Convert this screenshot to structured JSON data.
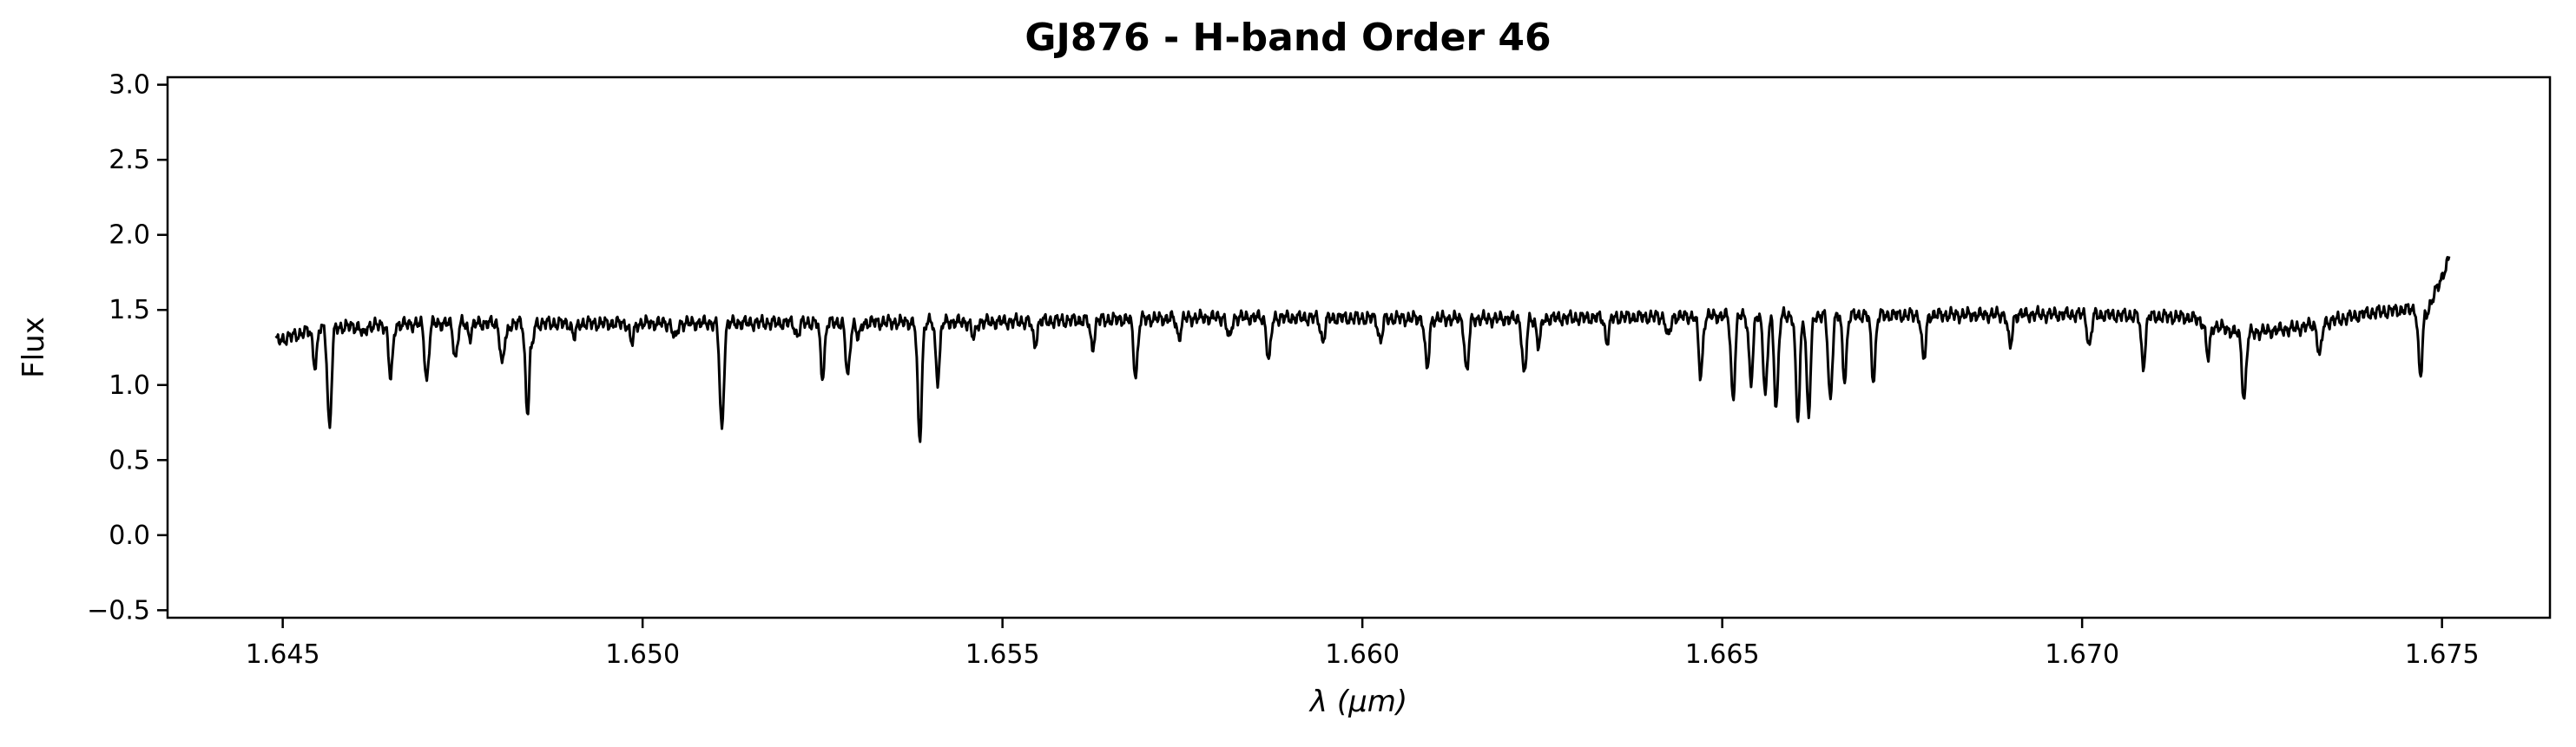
{
  "chart_data": {
    "type": "line",
    "title": "GJ876 - H-band Order 46",
    "xlabel": "λ (μm)",
    "ylabel": "Flux",
    "xlim": [
      1.6434,
      1.6765
    ],
    "ylim": [
      -0.55,
      3.05
    ],
    "xticks": [
      1.645,
      1.65,
      1.655,
      1.66,
      1.665,
      1.67,
      1.675
    ],
    "xtick_labels": [
      "1.645",
      "1.650",
      "1.655",
      "1.660",
      "1.665",
      "1.670",
      "1.675"
    ],
    "yticks": [
      -0.5,
      0.0,
      0.5,
      1.0,
      1.5,
      2.0,
      2.5,
      3.0
    ],
    "ytick_labels": [
      "−0.5",
      "0.0",
      "0.5",
      "1.0",
      "1.5",
      "2.0",
      "2.5",
      "3.0"
    ],
    "grid": false,
    "legend": "none",
    "series": [
      {
        "color": "#000000",
        "x_range": [
          1.6449,
          1.6751
        ],
        "continuum": [
          [
            1.6449,
            1.31
          ],
          [
            1.6455,
            1.4
          ],
          [
            1.647,
            1.43
          ],
          [
            1.65,
            1.43
          ],
          [
            1.655,
            1.44
          ],
          [
            1.658,
            1.47
          ],
          [
            1.662,
            1.46
          ],
          [
            1.665,
            1.48
          ],
          [
            1.67,
            1.49
          ],
          [
            1.6715,
            1.47
          ],
          [
            1.6722,
            1.36
          ],
          [
            1.673,
            1.4
          ],
          [
            1.674,
            1.5
          ],
          [
            1.6747,
            1.53
          ],
          [
            1.6748,
            1.51
          ],
          [
            1.6751,
            1.86
          ]
        ],
        "absorption_lines": [
          [
            1.64565,
            0.73
          ],
          [
            1.64612,
            1.35
          ],
          [
            1.6465,
            1.06
          ],
          [
            1.647,
            1.05
          ],
          [
            1.6476,
            1.35
          ],
          [
            1.6481,
            1.33
          ],
          [
            1.64845,
            1.24
          ],
          [
            1.64905,
            1.34
          ],
          [
            1.64985,
            1.3
          ],
          [
            1.65045,
            1.32
          ],
          [
            1.6511,
            1.36
          ],
          [
            1.65215,
            1.35
          ],
          [
            1.653,
            1.33
          ],
          [
            1.65385,
            1.35
          ],
          [
            1.6546,
            1.33
          ],
          [
            1.65545,
            1.29
          ],
          [
            1.65625,
            1.27
          ],
          [
            1.65685,
            1.08
          ],
          [
            1.65745,
            1.34
          ],
          [
            1.65815,
            1.32
          ],
          [
            1.6587,
            1.18
          ],
          [
            1.65945,
            1.31
          ],
          [
            1.66025,
            1.31
          ],
          [
            1.6609,
            1.12
          ],
          [
            1.66145,
            1.1
          ],
          [
            1.66245,
            1.28
          ],
          [
            1.6634,
            1.31
          ],
          [
            1.66425,
            1.33
          ],
          [
            1.6654,
            1.04
          ],
          [
            1.6656,
            0.95
          ],
          [
            1.66605,
            0.78
          ],
          [
            1.6667,
            1.06
          ],
          [
            1.6678,
            1.18
          ],
          [
            1.669,
            1.27
          ],
          [
            1.6701,
            1.28
          ],
          [
            1.67085,
            1.15
          ],
          [
            1.67175,
            1.2
          ],
          [
            1.67225,
            0.93
          ],
          [
            1.6733,
            1.21
          ],
          [
            1.6747,
            1.07
          ],
          [
            1.64545,
            1.15
          ],
          [
            1.6474,
            1.2
          ],
          [
            1.64805,
            1.15
          ],
          [
            1.6484,
            0.84
          ],
          [
            1.6511,
            0.72
          ],
          [
            1.6525,
            1.08
          ],
          [
            1.65285,
            1.07
          ],
          [
            1.65385,
            0.65
          ],
          [
            1.6541,
            1.06
          ],
          [
            1.66225,
            1.08
          ],
          [
            1.6647,
            1.08
          ],
          [
            1.66515,
            0.93
          ],
          [
            1.66575,
            0.88
          ],
          [
            1.6662,
            0.82
          ],
          [
            1.6665,
            0.92
          ],
          [
            1.6671,
            1.06
          ]
        ],
        "noise_amplitude": 0.05
      }
    ]
  }
}
